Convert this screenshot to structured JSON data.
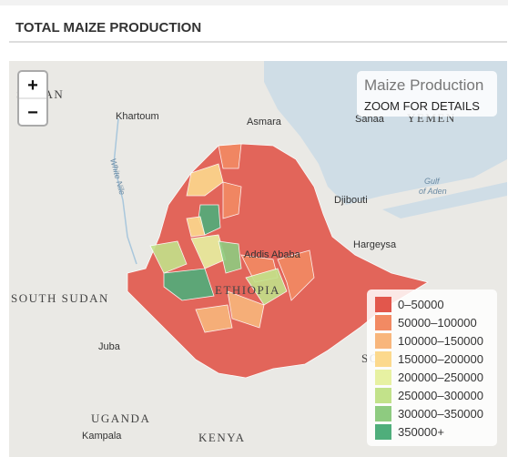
{
  "header": {
    "title": "TOTAL MAIZE PRODUCTION"
  },
  "zoom": {
    "in": "+",
    "out": "−"
  },
  "info": {
    "title": "Maize Production",
    "subtitle": "ZOOM FOR DETAILS"
  },
  "legend": {
    "items": [
      {
        "label": "0–50000",
        "color": "#e2574c"
      },
      {
        "label": "50000–100000",
        "color": "#f28a63"
      },
      {
        "label": "100000–150000",
        "color": "#f8b67c"
      },
      {
        "label": "150000–200000",
        "color": "#fcd98d"
      },
      {
        "label": "200000–250000",
        "color": "#e7f1a2"
      },
      {
        "label": "250000–300000",
        "color": "#c2e28a"
      },
      {
        "label": "300000–350000",
        "color": "#8ecb80"
      },
      {
        "label": "350000+",
        "color": "#4fae7b"
      }
    ]
  },
  "places": {
    "sudan": "SUDAN",
    "khartoum": "Khartoum",
    "asmara": "Asmara",
    "sanaa": "Sanaa",
    "yemen": "YEMEN",
    "djibouti": "Djibouti",
    "gulf": "Gulf",
    "of_aden": "of Aden",
    "white_nile": "White Nile",
    "hargeysa": "Hargeysa",
    "addis": "Addis Ababa",
    "ethiopia": "ETHIOPIA",
    "south_sudan": "SOUTH SUDAN",
    "juba": "Juba",
    "uganda": "UGANDA",
    "kampala": "Kampala",
    "kenya": "KENYA",
    "somalia": "SOM"
  }
}
